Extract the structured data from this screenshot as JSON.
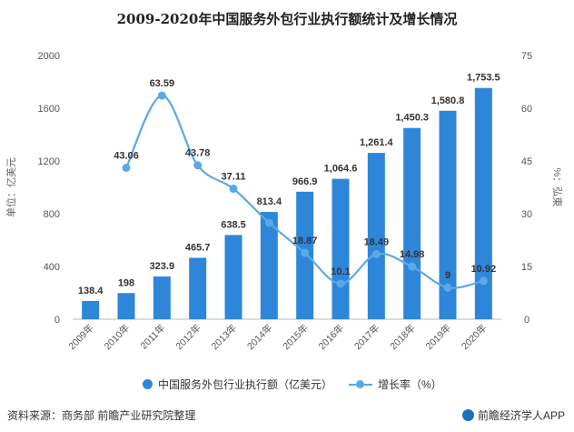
{
  "title": "2009-2020年中国服务外包行业执行额统计及增长情况",
  "chart_data": {
    "type": "bar",
    "categories": [
      "2009年",
      "2010年",
      "2011年",
      "2012年",
      "2013年",
      "2014年",
      "2015年",
      "2016年",
      "2017年",
      "2018年",
      "2019年",
      "2020年"
    ],
    "series": [
      {
        "name": "中国服务外包行业执行额（亿美元）",
        "type": "bar",
        "axis": "left",
        "values": [
          138.4,
          198,
          323.9,
          465.7,
          638.5,
          813.4,
          966.9,
          1064.6,
          1261.4,
          1450.3,
          1580.8,
          1753.5
        ],
        "labels": [
          "138.4",
          "198",
          "323.9",
          "465.7",
          "638.5",
          "813.4",
          "966.9",
          "1,064.6",
          "1,261.4",
          "1,450.3",
          "1,580.8",
          "1,753.5"
        ],
        "color": "#2e86d9"
      },
      {
        "name": "增长率（%）",
        "type": "line",
        "axis": "right",
        "values": [
          null,
          43.06,
          63.59,
          43.78,
          37.11,
          27.4,
          18.87,
          10.1,
          18.49,
          14.98,
          9,
          10.92
        ],
        "labels": [
          null,
          "43.06",
          "63.59",
          "43.78",
          "37.11",
          null,
          "18.87",
          "10.1",
          "18.49",
          "14.98",
          "9",
          "10.92"
        ],
        "color": "#5aa9e6"
      }
    ],
    "y_left": {
      "label": "单位：亿美元",
      "ylim": [
        0,
        2000
      ],
      "ticks": [
        "0",
        "400",
        "800",
        "1200",
        "1600",
        "2000"
      ]
    },
    "y_right": {
      "label": "%：弘東",
      "ylim": [
        0,
        75
      ],
      "ticks": [
        "0",
        "15",
        "30",
        "45",
        "60",
        "75"
      ]
    },
    "grid": false,
    "legend": "bottom"
  },
  "legend": {
    "bar_label": "中国服务外包行业执行额（亿美元）",
    "line_label": "增长率（%）"
  },
  "footer": {
    "source": "资料来源：商务部 前瞻产业研究院整理",
    "brand": "前瞻经济学人APP"
  }
}
